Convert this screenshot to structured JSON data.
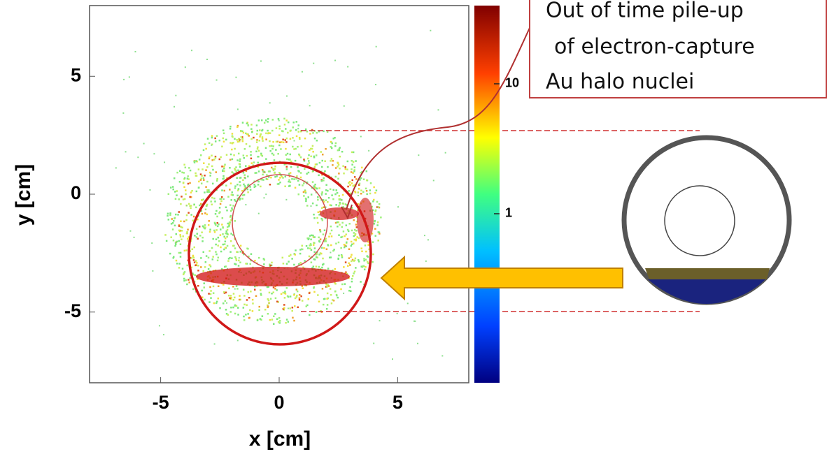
{
  "chart_data": {
    "type": "heatmap",
    "xlabel": "x [cm]",
    "ylabel": "y [cm]",
    "xlim": [
      -8,
      8
    ],
    "ylim": [
      -8,
      8
    ],
    "xticks": [
      -5,
      0,
      5
    ],
    "yticks": [
      -5,
      0,
      5
    ],
    "colorbar": {
      "scale": "log",
      "lim": [
        0.05,
        40
      ],
      "ticks": [
        1,
        10
      ]
    }
  },
  "annotation": {
    "lines": [
      "Out of time pile-up",
      "of electron-capture",
      "Au halo nuclei"
    ]
  }
}
